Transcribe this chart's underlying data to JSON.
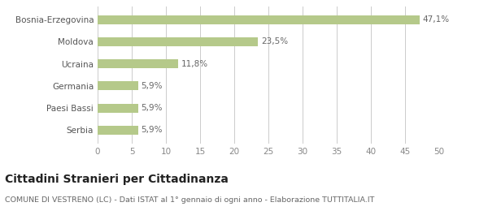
{
  "categories": [
    "Bosnia-Erzegovina",
    "Moldova",
    "Ucraina",
    "Germania",
    "Paesi Bassi",
    "Serbia"
  ],
  "values": [
    47.1,
    23.5,
    11.8,
    5.9,
    5.9,
    5.9
  ],
  "labels": [
    "47,1%",
    "23,5%",
    "11,8%",
    "5,9%",
    "5,9%",
    "5,9%"
  ],
  "bar_color": "#b5c98a",
  "title": "Cittadini Stranieri per Cittadinanza",
  "subtitle": "COMUNE DI VESTRENO (LC) - Dati ISTAT al 1° gennaio di ogni anno - Elaborazione TUTTITALIA.IT",
  "xlim": [
    0,
    50
  ],
  "xticks": [
    0,
    5,
    10,
    15,
    20,
    25,
    30,
    35,
    40,
    45,
    50
  ],
  "background_color": "#ffffff",
  "grid_color": "#cccccc",
  "label_fontsize": 7.5,
  "tick_fontsize": 7.5,
  "title_fontsize": 10,
  "subtitle_fontsize": 6.8,
  "bar_height": 0.4
}
